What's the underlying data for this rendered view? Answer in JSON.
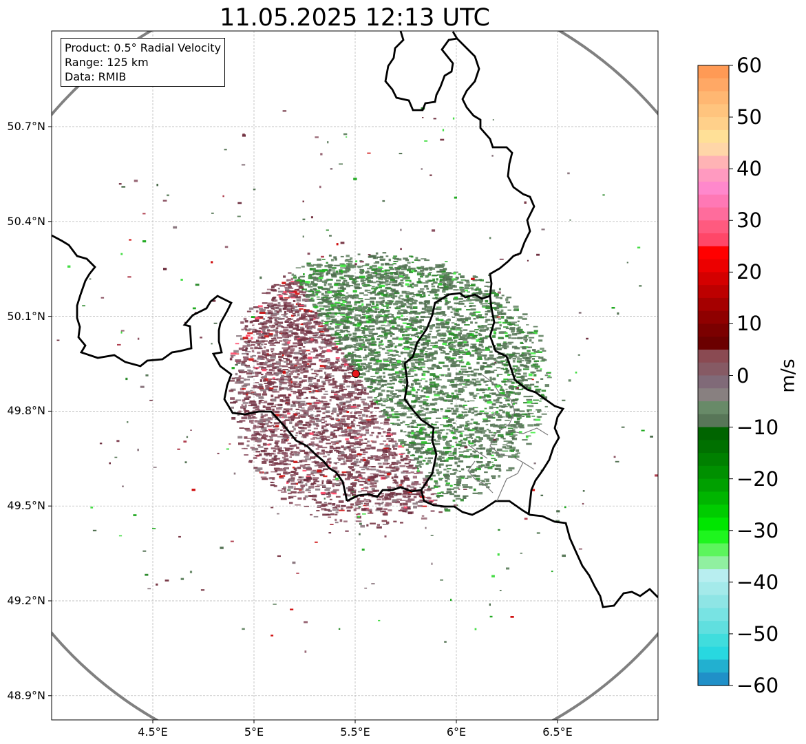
{
  "title": "11.05.2025 12:13 UTC",
  "info": {
    "product": "Product: 0.5° Radial Velocity",
    "range": "Range: 125 km",
    "data": "Data: RMIB"
  },
  "map": {
    "lon_range": [
      4.0,
      7.0
    ],
    "lat_range": [
      48.8,
      51.1
    ],
    "x_ticks": [
      {
        "value": 4.5,
        "label": "4.5°E"
      },
      {
        "value": 5.0,
        "label": "5°E"
      },
      {
        "value": 5.5,
        "label": "5.5°E"
      },
      {
        "value": 6.0,
        "label": "6°E"
      },
      {
        "value": 6.5,
        "label": "6.5°E"
      }
    ],
    "y_ticks": [
      {
        "value": 50.7,
        "label": "50.7°N"
      },
      {
        "value": 50.4,
        "label": "50.4°N"
      },
      {
        "value": 50.1,
        "label": "50.1°N"
      },
      {
        "value": 49.8,
        "label": "49.8°N"
      },
      {
        "value": 49.5,
        "label": "49.5°N"
      },
      {
        "value": 49.2,
        "label": "49.2°N"
      },
      {
        "value": 48.9,
        "label": "48.9°N"
      }
    ],
    "radar_site": {
      "lon": 5.505,
      "lat": 49.914
    },
    "range_km": 125
  },
  "colorbar": {
    "title": "m/s",
    "vmin": -60,
    "vmax": 60,
    "ticks": [
      "60",
      "50",
      "40",
      "30",
      "20",
      "10",
      "0",
      "−10",
      "−20",
      "−30",
      "−40",
      "−50",
      "−60"
    ],
    "colors_top_to_bottom": [
      "#ff9a55",
      "#ffa865",
      "#ffb772",
      "#ffc47e",
      "#ffd08a",
      "#ffe097",
      "#ffd6a8",
      "#ffb3b5",
      "#ff9ac0",
      "#ff88cc",
      "#ff78b5",
      "#ff6c9c",
      "#ff5a7f",
      "#ff4768",
      "#ff0000",
      "#ec0000",
      "#d40000",
      "#bd0000",
      "#a50000",
      "#8f0000",
      "#7b0000",
      "#6b0000",
      "#8a4a52",
      "#865a64",
      "#806a78",
      "#888080",
      "#688a68",
      "#587658",
      "#006400",
      "#007000",
      "#008000",
      "#009000",
      "#00a000",
      "#00b500",
      "#00cc00",
      "#00e600",
      "#1ef51e",
      "#5cf55c",
      "#90f0a0",
      "#b8eef0",
      "#a4eaea",
      "#8ee5e5",
      "#78e3e3",
      "#60dfdf",
      "#40dddd",
      "#28d8e0",
      "#22b0d0",
      "#2090c8"
    ]
  },
  "colors": {
    "ring": "#808080",
    "border": "#000000",
    "grid": "#b0b0b0",
    "site": "#e8161b",
    "inbound": [
      "#5a7a5a",
      "#587658",
      "#6a8a6a",
      "#4e6e4e",
      "#2e8b2e",
      "#22aa22",
      "#44dd44"
    ],
    "outbound": [
      "#7a3a48",
      "#8a5060",
      "#6e3040",
      "#9a6a78",
      "#8c7880",
      "#b04050",
      "#d01010"
    ]
  }
}
